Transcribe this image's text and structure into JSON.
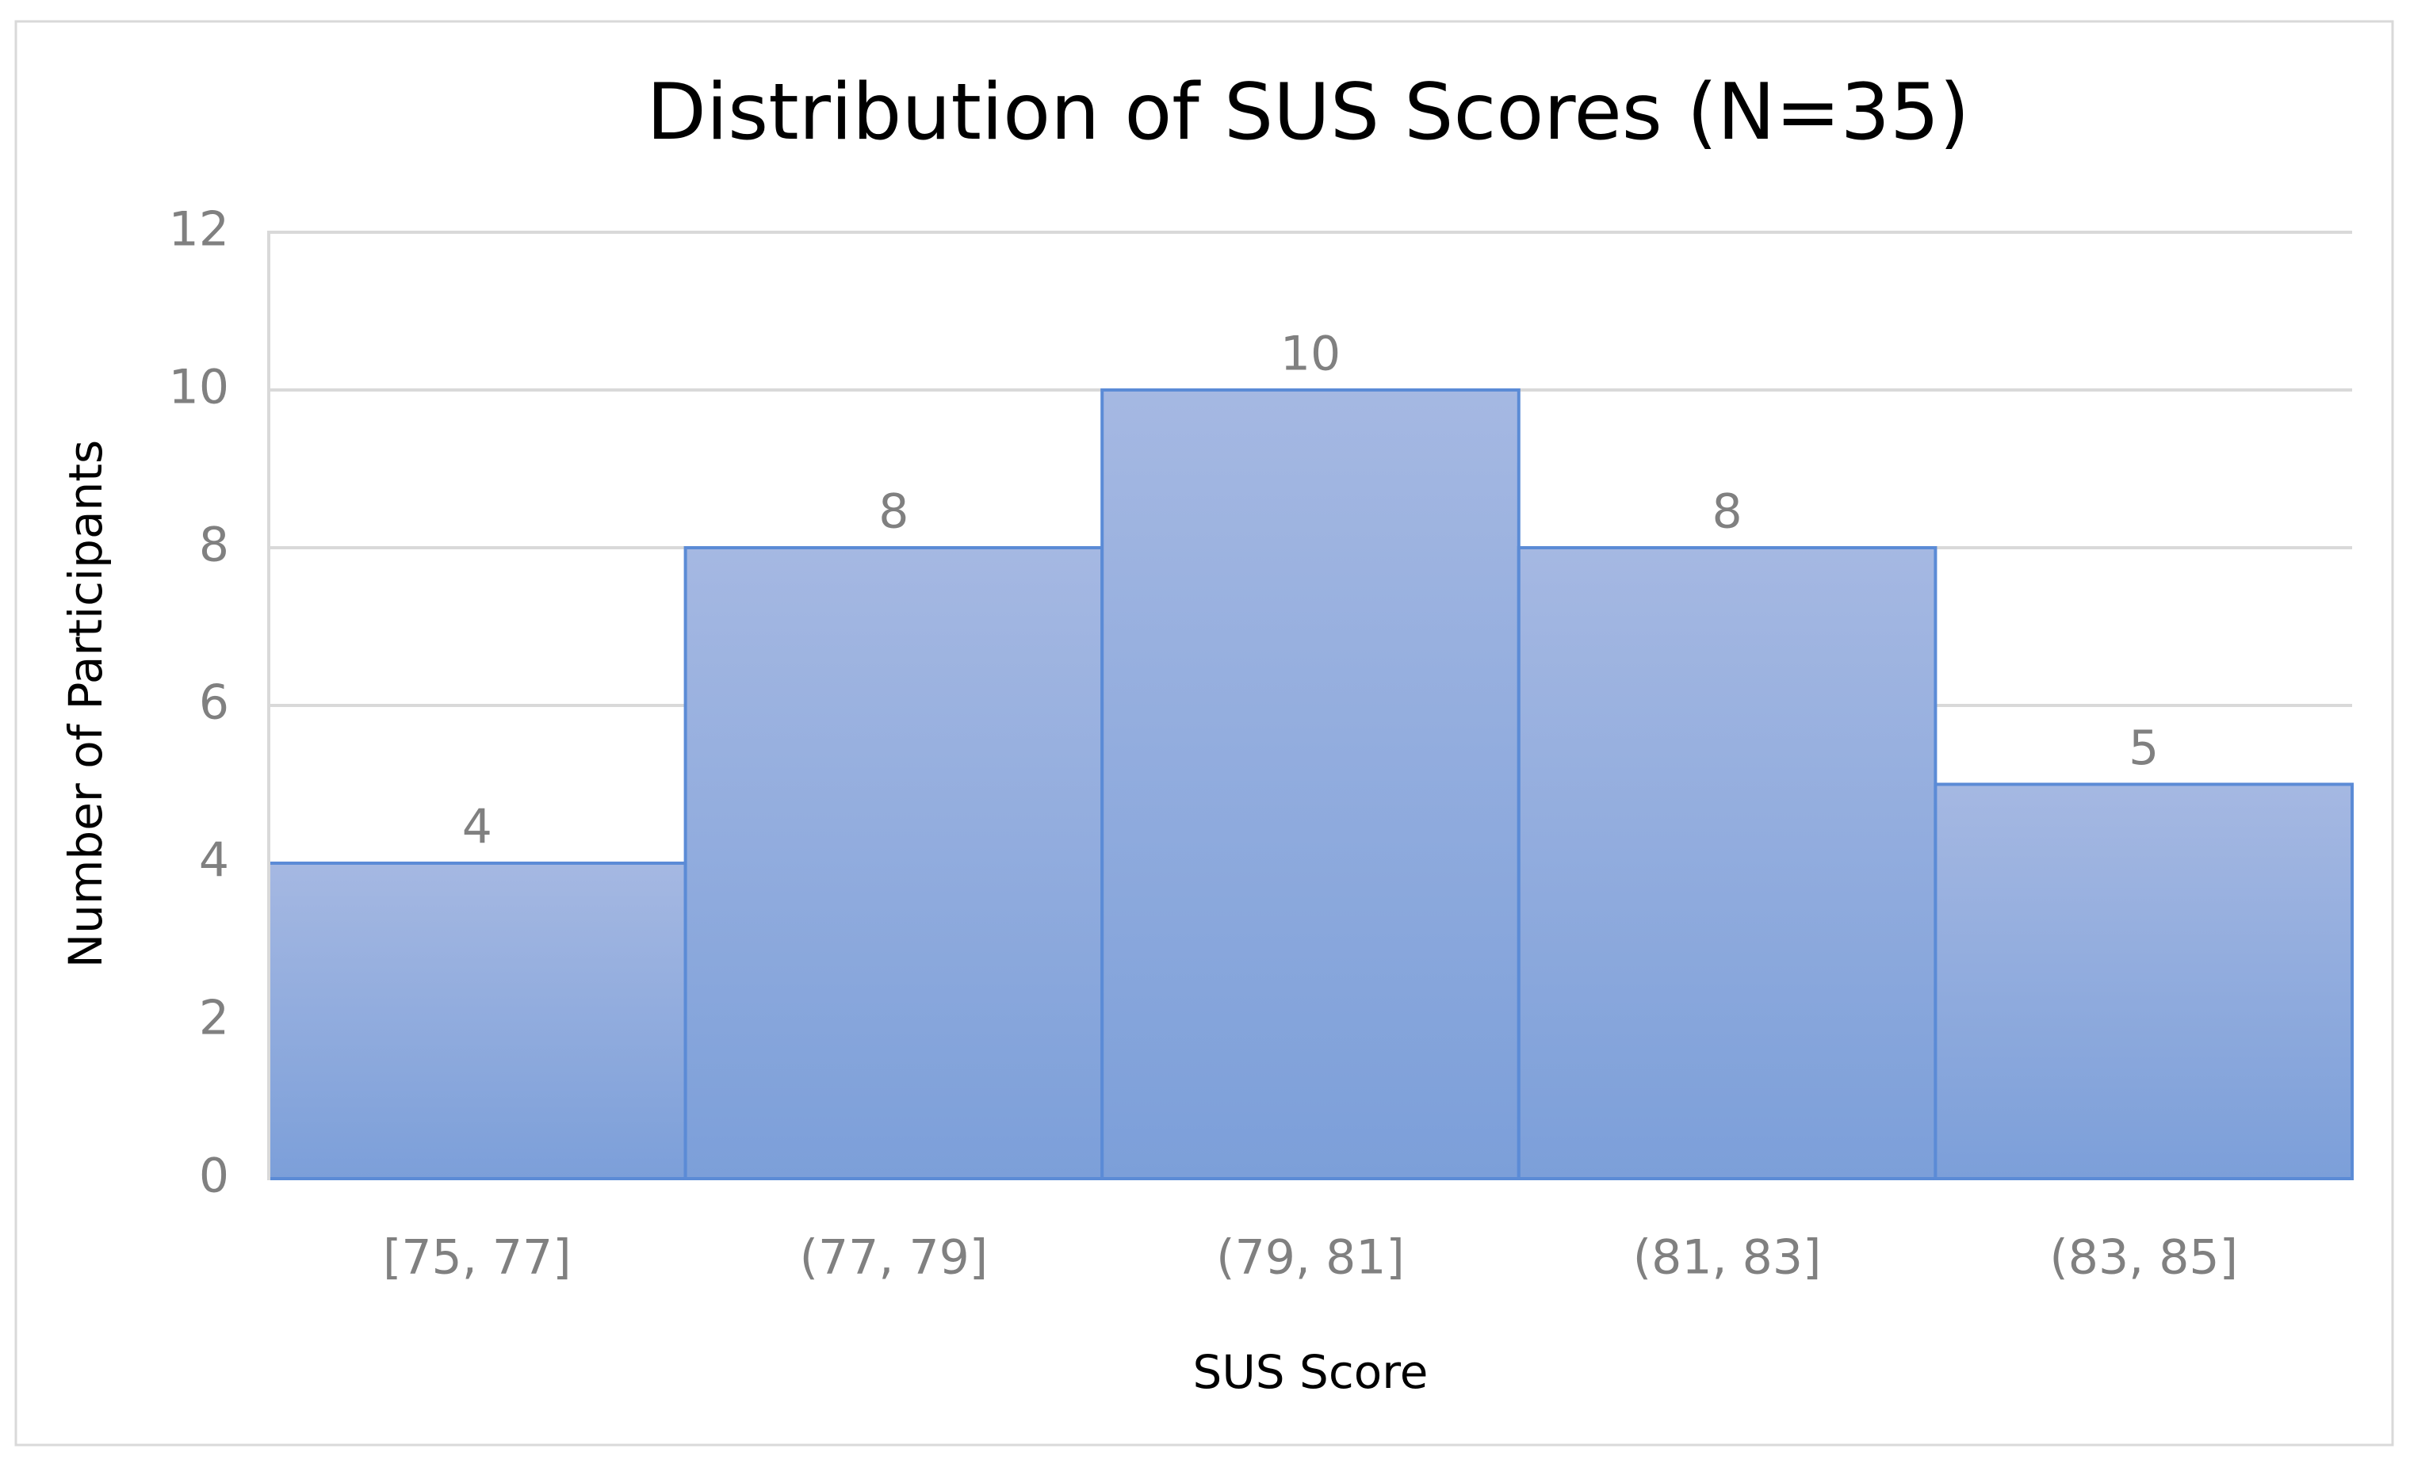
{
  "chart_data": {
    "type": "bar",
    "title": "Distribution of SUS Scores (N=35)",
    "x_label": "SUS Score",
    "y_label": "Number of Participants",
    "categories": [
      "[75, 77]",
      "(77, 79]",
      "(79, 81]",
      "(81, 83]",
      "(83, 85]"
    ],
    "values": [
      4,
      8,
      10,
      8,
      5
    ],
    "color": "#8ea8dc",
    "ylim": [
      0,
      12
    ],
    "yticks": [
      0,
      2,
      4,
      6,
      8,
      10,
      12
    ],
    "grid": true,
    "data_labels": true
  }
}
